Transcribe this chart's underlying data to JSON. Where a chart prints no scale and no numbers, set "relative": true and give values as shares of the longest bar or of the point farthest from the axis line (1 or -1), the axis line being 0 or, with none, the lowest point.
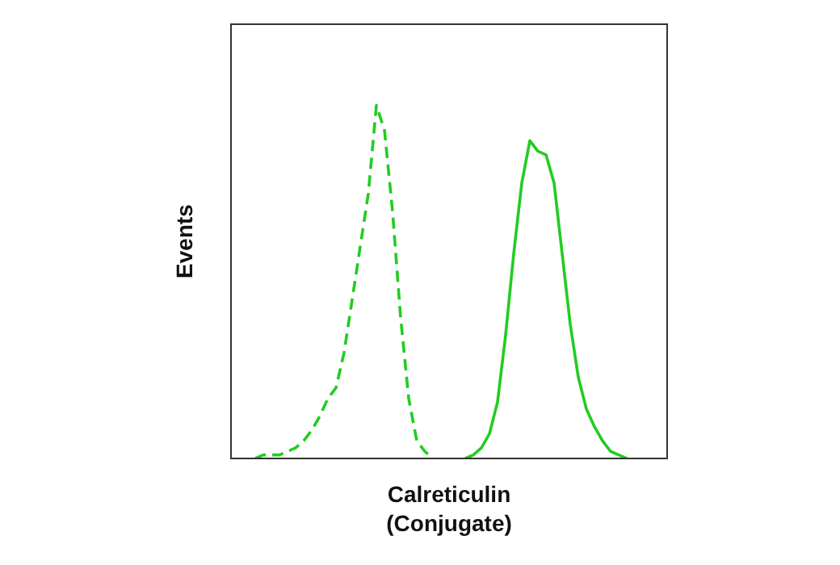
{
  "chart_data": {
    "type": "line",
    "relative": true,
    "xlabel": "Calreticulin\n(Conjugate)",
    "ylabel": "Events",
    "legend": false,
    "marker": "none",
    "categories": [
      null,
      null,
      null,
      null,
      null,
      null,
      null,
      null,
      null,
      null,
      null,
      null,
      null,
      null,
      null,
      null,
      null,
      null,
      null,
      null,
      null,
      null,
      null,
      null,
      null,
      null,
      null,
      null,
      null,
      null,
      null,
      null,
      null,
      null,
      null,
      null,
      null,
      null,
      null,
      null,
      null,
      null,
      null,
      null,
      null,
      null,
      null,
      null,
      null,
      null,
      null,
      null,
      null,
      null,
      null
    ],
    "series": [
      {
        "color": "#22cc22",
        "line_style": "dashed",
        "values": [
          null,
          null,
          null,
          0,
          0.01,
          0.01,
          0.01,
          0.02,
          0.03,
          0.05,
          0.08,
          0.12,
          0.17,
          0.2,
          0.3,
          0.45,
          0.6,
          0.75,
          1,
          0.93,
          0.7,
          0.4,
          0.17,
          0.05,
          0.02,
          0,
          null,
          null,
          null,
          null,
          null,
          null,
          null,
          null,
          null,
          null,
          null,
          null,
          null,
          null,
          null,
          null,
          null,
          null,
          null,
          null,
          null,
          null,
          null,
          null,
          null,
          null,
          null,
          null,
          null
        ]
      },
      {
        "color": "#22cc22",
        "line_style": "solid",
        "values": [
          null,
          null,
          null,
          null,
          null,
          null,
          null,
          null,
          null,
          null,
          null,
          null,
          null,
          null,
          null,
          null,
          null,
          null,
          null,
          null,
          null,
          null,
          null,
          null,
          null,
          null,
          null,
          null,
          null,
          0,
          0.01,
          0.03,
          0.07,
          0.16,
          0.35,
          0.58,
          0.78,
          0.9,
          0.87,
          0.86,
          0.78,
          0.58,
          0.38,
          0.23,
          0.14,
          0.09,
          0.05,
          0.02,
          0.01,
          0,
          null,
          null,
          null,
          null,
          null
        ]
      }
    ]
  }
}
